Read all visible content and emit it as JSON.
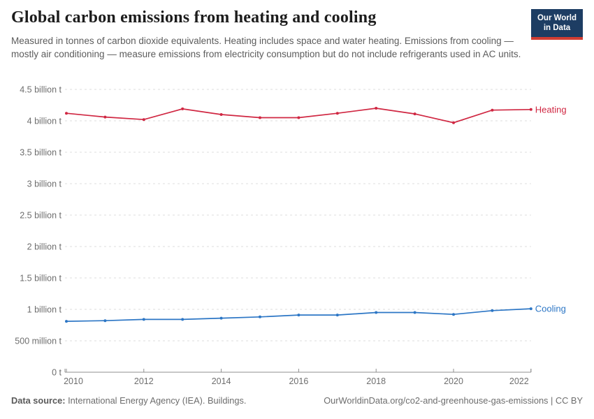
{
  "header": {
    "title": "Global carbon emissions from heating and cooling",
    "subtitle": "Measured in tonnes of carbon dioxide equivalents. Heating includes space and water heating. Emissions from cooling — mostly air conditioning — measure emissions from electricity consumption but do not include refrigerants used in AC units.",
    "logo": {
      "line1": "Our World",
      "line2": "in Data",
      "bg_color": "#1d3d63",
      "stripe_color": "#d13d33"
    }
  },
  "chart_data": {
    "type": "line",
    "title": "Global carbon emissions from heating and cooling",
    "xlabel": "",
    "ylabel": "tonnes of carbon dioxide equivalents",
    "x": [
      2010,
      2011,
      2012,
      2013,
      2014,
      2015,
      2016,
      2017,
      2018,
      2019,
      2020,
      2021,
      2022
    ],
    "series": [
      {
        "name": "Heating",
        "color": "#d02742",
        "values": [
          4.12,
          4.06,
          4.02,
          4.19,
          4.1,
          4.05,
          4.05,
          4.12,
          4.2,
          4.11,
          3.97,
          4.17,
          4.18
        ],
        "unit": "billion t"
      },
      {
        "name": "Cooling",
        "color": "#2c76c5",
        "values": [
          0.81,
          0.82,
          0.84,
          0.84,
          0.86,
          0.88,
          0.91,
          0.91,
          0.95,
          0.95,
          0.92,
          0.98,
          1.01
        ],
        "unit": "billion t"
      }
    ],
    "yticks": [
      {
        "value": 0,
        "label": "0 t"
      },
      {
        "value": 0.5,
        "label": "500 million t"
      },
      {
        "value": 1,
        "label": "1 billion t"
      },
      {
        "value": 1.5,
        "label": "1.5 billion t"
      },
      {
        "value": 2,
        "label": "2 billion t"
      },
      {
        "value": 2.5,
        "label": "2.5 billion t"
      },
      {
        "value": 3,
        "label": "3 billion t"
      },
      {
        "value": 3.5,
        "label": "3.5 billion t"
      },
      {
        "value": 4,
        "label": "4 billion t"
      },
      {
        "value": 4.5,
        "label": "4.5 billion t"
      }
    ],
    "xticks": [
      2010,
      2012,
      2014,
      2016,
      2018,
      2020,
      2022
    ],
    "ylim": [
      0,
      4.5
    ],
    "xlim": [
      2010,
      2022
    ],
    "grid": "horizontal-dashed",
    "legend_position": "line-end-labels",
    "colors": {
      "gridline": "#dcdcdc",
      "axis_line": "#8f8f8f",
      "tick_text": "#6e6e6e"
    }
  },
  "footer": {
    "datasource_label": "Data source:",
    "datasource_value": "International Energy Agency (IEA). Buildings.",
    "credit": "OurWorldinData.org/co2-and-greenhouse-gas-emissions | CC BY"
  }
}
